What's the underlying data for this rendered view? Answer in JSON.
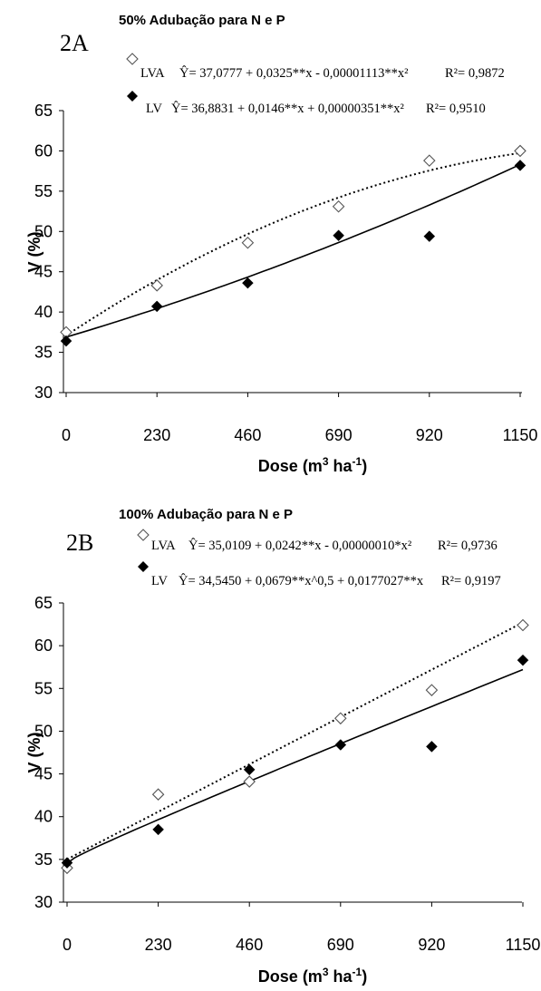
{
  "chart_data": [
    {
      "type": "scatter",
      "panel": "2A",
      "title": "50% Adubação para N e P",
      "xlabel": "Dose (m3 ha-1)",
      "ylabel": "V (%)",
      "categories": [
        "0",
        "230",
        "460",
        "690",
        "920",
        "1150"
      ],
      "x": [
        0,
        230,
        460,
        690,
        920,
        1150
      ],
      "ylim": [
        30,
        65
      ],
      "yticks": [
        30,
        35,
        40,
        45,
        50,
        55,
        60,
        65
      ],
      "grid": false,
      "series": [
        {
          "name": "LVA",
          "equation": "Ŷ= 37,0777 + 0,0325**x - 0,00001113**x²",
          "r2": "R²= 0,9872",
          "marker": "open-diamond",
          "line": "dotted",
          "coef": {
            "a": 37.0777,
            "b": 0.0325,
            "c": -1.113e-05,
            "model": "quadratic"
          },
          "values": [
            37.5,
            43.3,
            48.6,
            53.1,
            58.8,
            60.0
          ]
        },
        {
          "name": "LV",
          "equation": "Ŷ= 36,8831 + 0,0146**x + 0,00000351**x²",
          "r2": "R²= 0,9510",
          "marker": "filled-diamond",
          "line": "solid",
          "coef": {
            "a": 36.8831,
            "b": 0.0146,
            "c": 3.51e-06,
            "model": "quadratic"
          },
          "values": [
            36.4,
            40.7,
            43.6,
            49.5,
            49.4,
            58.2
          ]
        }
      ]
    },
    {
      "type": "scatter",
      "panel": "2B",
      "title": "100% Adubação para N e P",
      "xlabel": "Dose (m3 ha-1)",
      "ylabel": "V (%)",
      "categories": [
        "0",
        "230",
        "460",
        "690",
        "920",
        "1150"
      ],
      "x": [
        0,
        230,
        460,
        690,
        920,
        1150
      ],
      "ylim": [
        30,
        65
      ],
      "yticks": [
        30,
        35,
        40,
        45,
        50,
        55,
        60,
        65
      ],
      "grid": false,
      "series": [
        {
          "name": "LVA",
          "equation": "Ŷ= 35,0109 + 0,0242**x - 0,00000010*x²",
          "r2": "R²= 0,9736",
          "marker": "open-diamond",
          "line": "dotted",
          "coef": {
            "a": 35.0109,
            "b": 0.0242,
            "c": -1e-07,
            "model": "quadratic"
          },
          "values": [
            34.0,
            42.6,
            44.1,
            51.5,
            54.8,
            62.4
          ]
        },
        {
          "name": "LV",
          "equation": "Ŷ= 34,5450 + 0,0679**x^0,5 + 0,0177027**x",
          "r2": "R²= 0,9197",
          "marker": "filled-diamond",
          "line": "solid",
          "coef": {
            "a": 34.545,
            "b": 0.0679,
            "c": 0.0177027,
            "model": "sqrt"
          },
          "values": [
            34.6,
            38.5,
            45.5,
            48.4,
            48.2,
            58.3
          ]
        }
      ]
    }
  ]
}
